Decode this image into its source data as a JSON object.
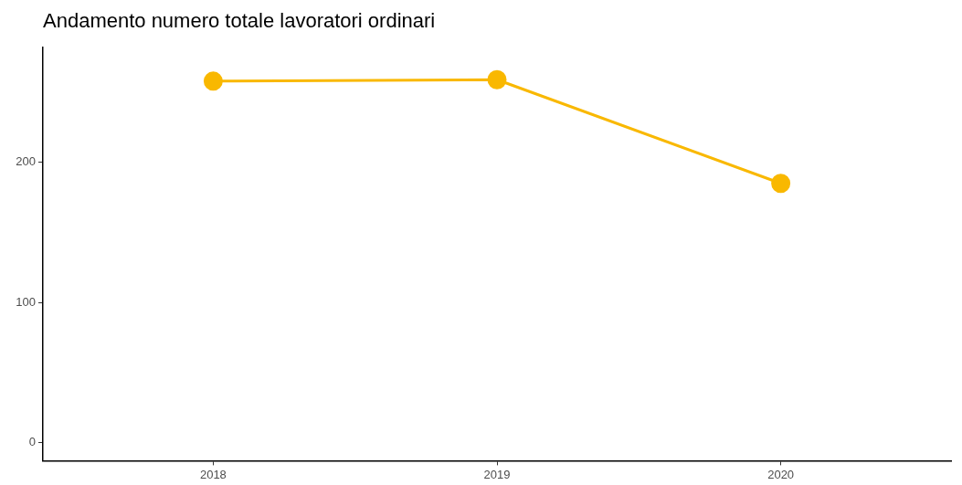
{
  "chart_data": {
    "type": "line",
    "title": "Andamento numero totale lavoratori ordinari",
    "x": [
      2018,
      2019,
      2020
    ],
    "series": [
      {
        "color": "#f9b800",
        "values": [
          258,
          259,
          185
        ]
      }
    ],
    "xlim": [
      2017.4,
      2020.6
    ],
    "xticks": [
      2018,
      2019,
      2020
    ],
    "ylim": [
      -13,
      282
    ],
    "yticks": [
      0,
      100,
      200
    ],
    "grid": false,
    "legend": false,
    "marker": "circle",
    "line_style": "solid"
  }
}
